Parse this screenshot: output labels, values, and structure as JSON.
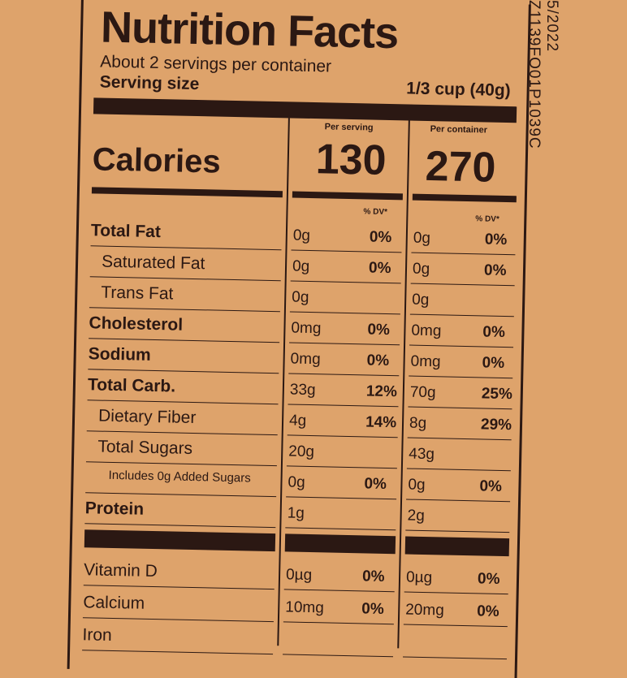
{
  "side_text": [
    "5/2022",
    "Z1139FO01P1039C"
  ],
  "title": "Nutrition Facts",
  "servings": "About 2 servings per container",
  "serving_size": {
    "label": "Serving size",
    "value": "1/3 cup (40g)"
  },
  "columns": [
    "Per serving",
    "Per container"
  ],
  "calories": {
    "label": "Calories",
    "values": [
      "130",
      "270"
    ]
  },
  "dv_header": "% DV*",
  "rows": [
    {
      "label": "Total Fat",
      "serving": [
        "0g",
        "0%"
      ],
      "container": [
        "0g",
        "0%"
      ]
    },
    {
      "label": "Saturated Fat",
      "serving": [
        "0g",
        "0%"
      ],
      "container": [
        "0g",
        "0%"
      ]
    },
    {
      "label": "Trans Fat",
      "serving": [
        "0g"
      ],
      "container": [
        "0g"
      ]
    },
    {
      "label": "Cholesterol",
      "serving": [
        "0mg",
        "0%"
      ],
      "container": [
        "0mg",
        "0%"
      ]
    },
    {
      "label": "Sodium",
      "serving": [
        "0mg",
        "0%"
      ],
      "container": [
        "0mg",
        "0%"
      ]
    },
    {
      "label": "Total Carb.",
      "serving": [
        "33g",
        "12%"
      ],
      "container": [
        "70g",
        "25%"
      ]
    },
    {
      "label": "Dietary Fiber",
      "serving": [
        "4g",
        "14%"
      ],
      "container": [
        "8g",
        "29%"
      ]
    },
    {
      "label": "Total Sugars",
      "serving": [
        "20g"
      ],
      "container": [
        "43g"
      ]
    },
    {
      "label": "Includes 0g Added Sugars",
      "serving": [
        "0g",
        "0%"
      ],
      "container": [
        "0g",
        "0%"
      ]
    },
    {
      "label": "Protein",
      "serving": [
        "1g"
      ],
      "container": [
        "2g"
      ]
    },
    {
      "label": "Vitamin D",
      "serving": [
        "0µg",
        "0%"
      ],
      "container": [
        "0µg",
        "0%"
      ]
    },
    {
      "label": "Calcium",
      "serving": [
        "10mg",
        "0%"
      ],
      "container": [
        "20mg",
        "0%"
      ]
    },
    {
      "label": "Iron"
    }
  ]
}
